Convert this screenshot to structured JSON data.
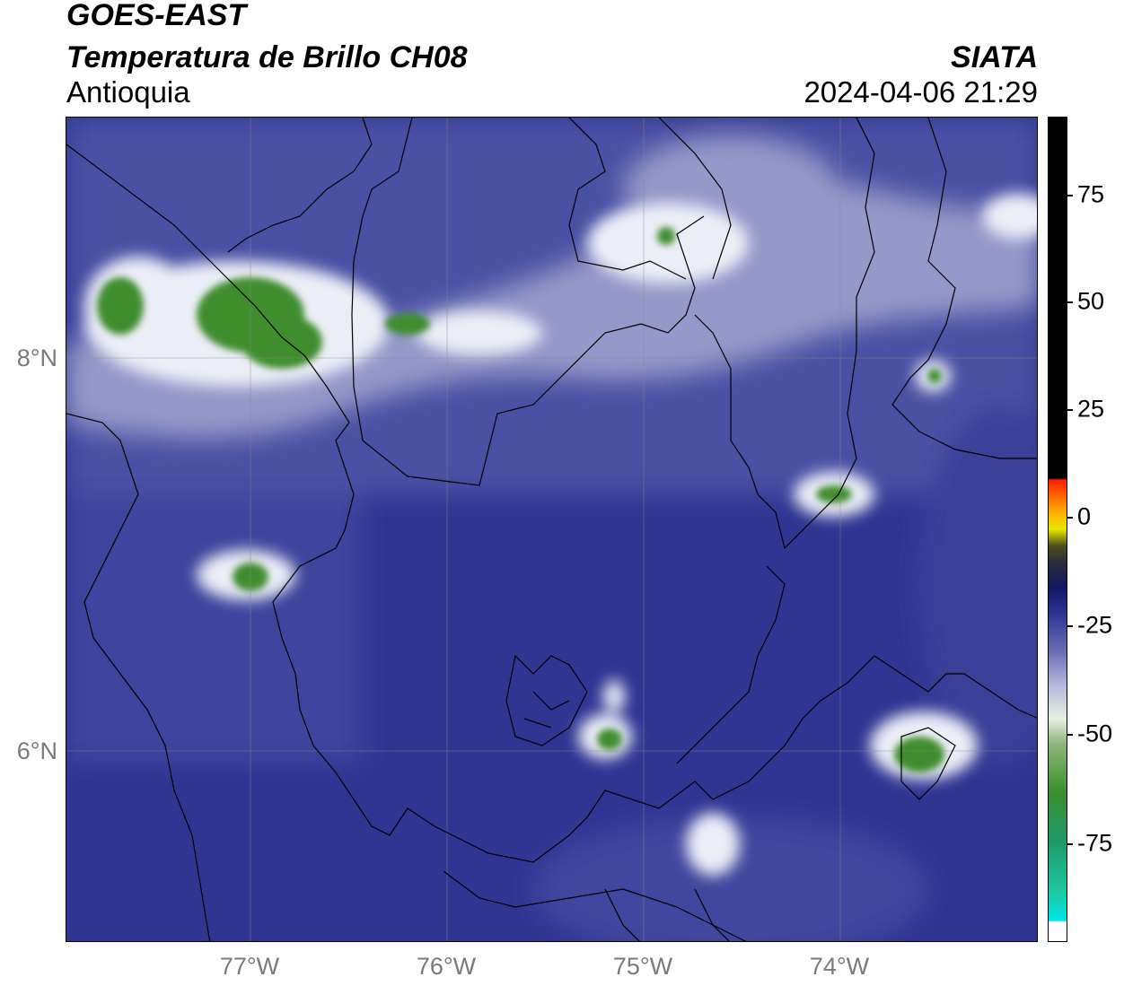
{
  "header": {
    "satellite": "GOES-EAST",
    "product": "Temperatura de Brillo CH08",
    "region": "Antioquia",
    "agency": "SIATA",
    "timestamp": "2024-04-06 21:29"
  },
  "map": {
    "lat_labels": [
      "8°N",
      "6°N"
    ],
    "lon_labels": [
      "77°W",
      "76°W",
      "75°W",
      "74°W"
    ],
    "colors": {
      "background_blue": "#2e3590",
      "mid_blue": "#4c53a2",
      "light_band": "#b8bcdc",
      "white_core": "#f4f5fa",
      "cold_green": "#3f8d2f",
      "border": "#000000",
      "grid": "#8a8a8a"
    }
  },
  "colorbar": {
    "tick_labels": [
      "75",
      "50",
      "25",
      "0",
      "-25",
      "-50",
      "-75"
    ],
    "colors": [
      "#ffffff",
      "#00e6e6",
      "#1fb08a",
      "#3b8f2f",
      "#e8efe2",
      "#7478b7",
      "#1f2a85",
      "#111760",
      "#3a3a2a",
      "#e8e800",
      "#ff8a00",
      "#ff1a00",
      "#000000"
    ]
  }
}
